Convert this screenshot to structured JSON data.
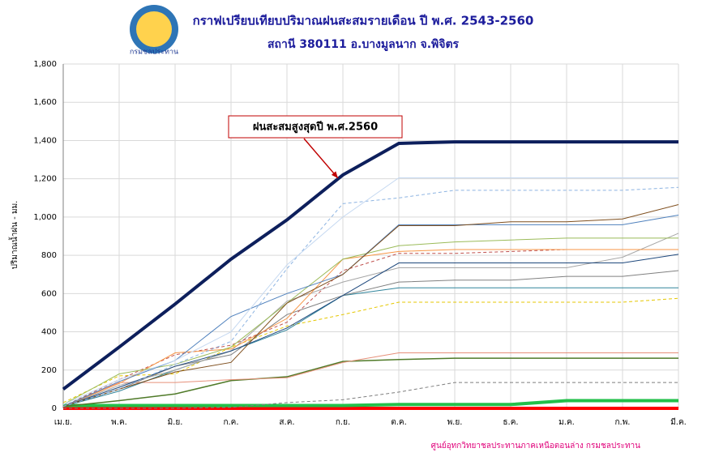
{
  "logo_text": "กรมชลประทาน",
  "chart_data": {
    "type": "line",
    "title": "กราฟเปรียบเทียบปริมาณฝนสะสมรายเดือน ปี พ.ศ. 2543-2560",
    "subtitle": "สถานี 380111 อ.บางมูลนาก จ.พิจิตร",
    "y_label": "ปริมาณน้ำฝน - มม.",
    "annotation": "ฝนสะสมสูงสุดปี พ.ศ.2560",
    "source": "ศูนย์อุทกวิทยาชลประทานภาคเหนือตอนล่าง กรมชลประทาน",
    "categories": [
      "เม.ย.",
      "พ.ค.",
      "มิ.ย.",
      "ก.ค.",
      "ส.ค.",
      "ก.ย.",
      "ต.ค.",
      "พ.ย.",
      "ธ.ค.",
      "ม.ค.",
      "ก.พ.",
      "มี.ค."
    ],
    "ylim": [
      0,
      1800
    ],
    "yticks": [
      0,
      200,
      400,
      600,
      800,
      {
        "value": 1000,
        "label": "1,000"
      },
      {
        "value": 1200,
        "label": "1,200"
      },
      {
        "value": 1400,
        "label": "1,400"
      },
      {
        "value": 1600,
        "label": "1,600"
      },
      {
        "value": 1800,
        "label": "1,800"
      }
    ],
    "grid": true,
    "series": [
      {
        "color": "#0d1f5c",
        "linewidth": 4,
        "values": [
          100,
          320,
          545,
          780,
          985,
          1220,
          1385,
          1393,
          1393,
          1393,
          1393,
          1393
        ]
      },
      {
        "color": "#c6d9f1",
        "linewidth": 1,
        "values": [
          20,
          150,
          250,
          400,
          750,
          1000,
          1205,
          1205,
          1205,
          1205,
          1205,
          1205
        ]
      },
      {
        "color": "#8db4e2",
        "linewidth": 1,
        "dashed": true,
        "values": [
          10,
          100,
          230,
          350,
          730,
          1070,
          1100,
          1140,
          1140,
          1140,
          1140,
          1155
        ]
      },
      {
        "color": "#7f4f1e",
        "linewidth": 1,
        "values": [
          10,
          100,
          190,
          240,
          550,
          700,
          955,
          955,
          975,
          975,
          990,
          1065
        ]
      },
      {
        "color": "#4f81bd",
        "linewidth": 1,
        "values": [
          10,
          140,
          250,
          480,
          600,
          700,
          960,
          960,
          960,
          960,
          960,
          1010
        ]
      },
      {
        "color": "#9bbb59",
        "linewidth": 1,
        "values": [
          20,
          180,
          230,
          320,
          550,
          780,
          850,
          870,
          880,
          890,
          890,
          890
        ]
      },
      {
        "color": "#f79646",
        "linewidth": 1,
        "values": [
          10,
          130,
          290,
          310,
          470,
          780,
          820,
          830,
          830,
          830,
          830,
          830
        ]
      },
      {
        "color": "#c0504d",
        "linewidth": 1,
        "dashed": true,
        "values": [
          10,
          150,
          280,
          330,
          450,
          720,
          810,
          810,
          820,
          830,
          830,
          830
        ]
      },
      {
        "color": "#1f497d",
        "linewidth": 1,
        "values": [
          10,
          110,
          220,
          300,
          420,
          590,
          760,
          760,
          760,
          760,
          760,
          805
        ]
      },
      {
        "color": "#a6a6a6",
        "linewidth": 1,
        "values": [
          10,
          120,
          200,
          300,
          560,
          660,
          735,
          735,
          735,
          735,
          790,
          915
        ]
      },
      {
        "color": "#808080",
        "linewidth": 1,
        "values": [
          10,
          100,
          220,
          280,
          490,
          590,
          660,
          670,
          670,
          690,
          690,
          720
        ]
      },
      {
        "color": "#31859c",
        "linewidth": 1,
        "values": [
          10,
          90,
          200,
          300,
          410,
          590,
          630,
          630,
          630,
          630,
          630,
          630
        ]
      },
      {
        "color": "#e5c700",
        "linewidth": 1,
        "dashed": true,
        "values": [
          30,
          170,
          180,
          320,
          430,
          490,
          555,
          555,
          555,
          555,
          555,
          575
        ]
      },
      {
        "color": "#e6907a",
        "linewidth": 1,
        "values": [
          10,
          135,
          135,
          150,
          160,
          240,
          290,
          290,
          290,
          290,
          290,
          290
        ]
      },
      {
        "color": "#4f7a28",
        "linewidth": 1.5,
        "values": [
          10,
          40,
          75,
          145,
          165,
          245,
          255,
          262,
          262,
          262,
          262,
          262
        ]
      },
      {
        "color": "#7f7f7f",
        "linewidth": 1,
        "dashed": true,
        "values": [
          0,
          0,
          0,
          5,
          30,
          45,
          85,
          135,
          135,
          135,
          135,
          135
        ]
      },
      {
        "color": "#22c04a",
        "linewidth": 4,
        "values": [
          15,
          15,
          15,
          15,
          15,
          15,
          20,
          20,
          20,
          40,
          40,
          40
        ]
      },
      {
        "color": "#ff0000",
        "linewidth": 4,
        "values": [
          0,
          0,
          0,
          0,
          0,
          0,
          0,
          0,
          0,
          0,
          0,
          0
        ]
      }
    ]
  }
}
